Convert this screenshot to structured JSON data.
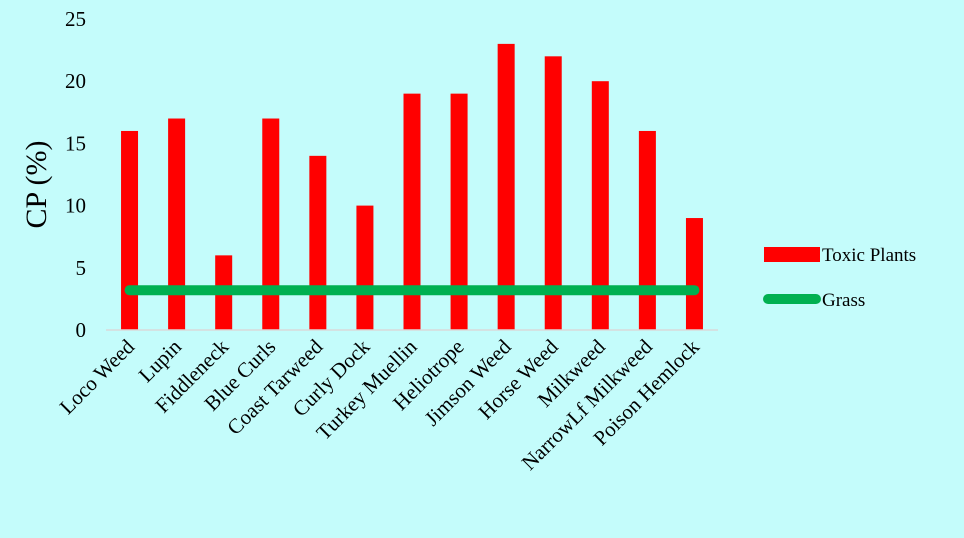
{
  "chart_data": {
    "type": "bar",
    "title": "",
    "xlabel": "",
    "ylabel": "CP (%)",
    "ylim": [
      0,
      25
    ],
    "yticks": [
      0,
      5,
      10,
      15,
      20,
      25
    ],
    "grid": false,
    "legend_position": "right",
    "categories": [
      "Loco Weed",
      "Lupin",
      "Fiddleneck",
      "Blue Curls",
      "Coast Tarweed",
      "Curly Dock",
      "Turkey Muellin",
      "Heliotrope",
      "Jimson Weed",
      "Horse Weed",
      "Milkweed",
      "NarrowLf Milkweed",
      "Poison Hemlock"
    ],
    "series": [
      {
        "name": "Toxic Plants",
        "type": "bar",
        "color": "#ff0000",
        "values": [
          16,
          17,
          6,
          17,
          14,
          10,
          19,
          19,
          23,
          22,
          20,
          16,
          9
        ]
      },
      {
        "name": "Grass",
        "type": "line",
        "color": "#00b050",
        "values": [
          3.2,
          3.2,
          3.2,
          3.2,
          3.2,
          3.2,
          3.2,
          3.2,
          3.2,
          3.2,
          3.2,
          3.2,
          3.2
        ]
      }
    ]
  },
  "colors": {
    "background": "#c4fcfb",
    "axis": "#d9d9d9"
  }
}
